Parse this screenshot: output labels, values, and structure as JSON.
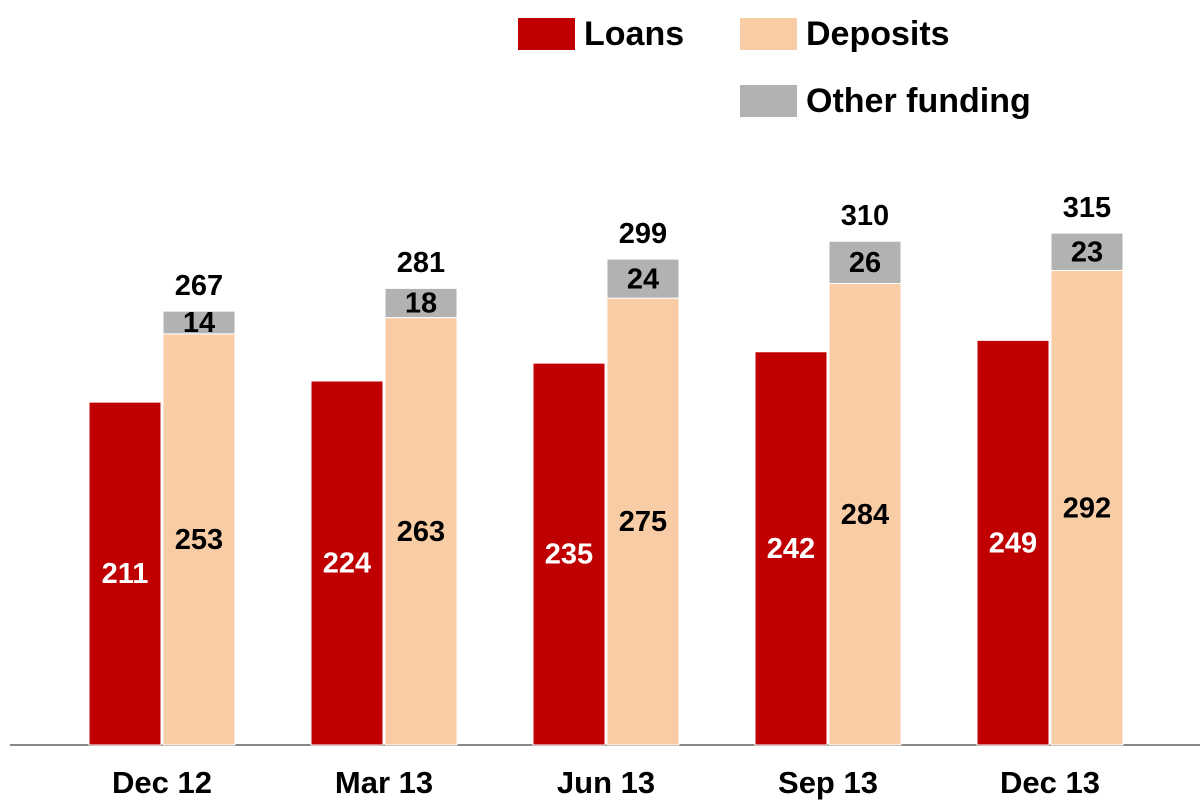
{
  "chart_data": {
    "type": "bar",
    "categories": [
      "Dec 12",
      "Mar 13",
      "Jun 13",
      "Sep 13",
      "Dec 13"
    ],
    "series": [
      {
        "name": "Loans",
        "color": "#c00000",
        "stack": "loans",
        "values": [
          211,
          224,
          235,
          242,
          249
        ]
      },
      {
        "name": "Deposits",
        "color": "#f8cda6",
        "stack": "funding",
        "values": [
          253,
          263,
          275,
          284,
          292
        ]
      },
      {
        "name": "Other funding",
        "color": "#b2b2b2",
        "stack": "funding",
        "values": [
          14,
          18,
          24,
          26,
          23
        ]
      }
    ],
    "totals": [
      267,
      281,
      299,
      310,
      315
    ],
    "ylim": [
      0,
      400
    ]
  }
}
